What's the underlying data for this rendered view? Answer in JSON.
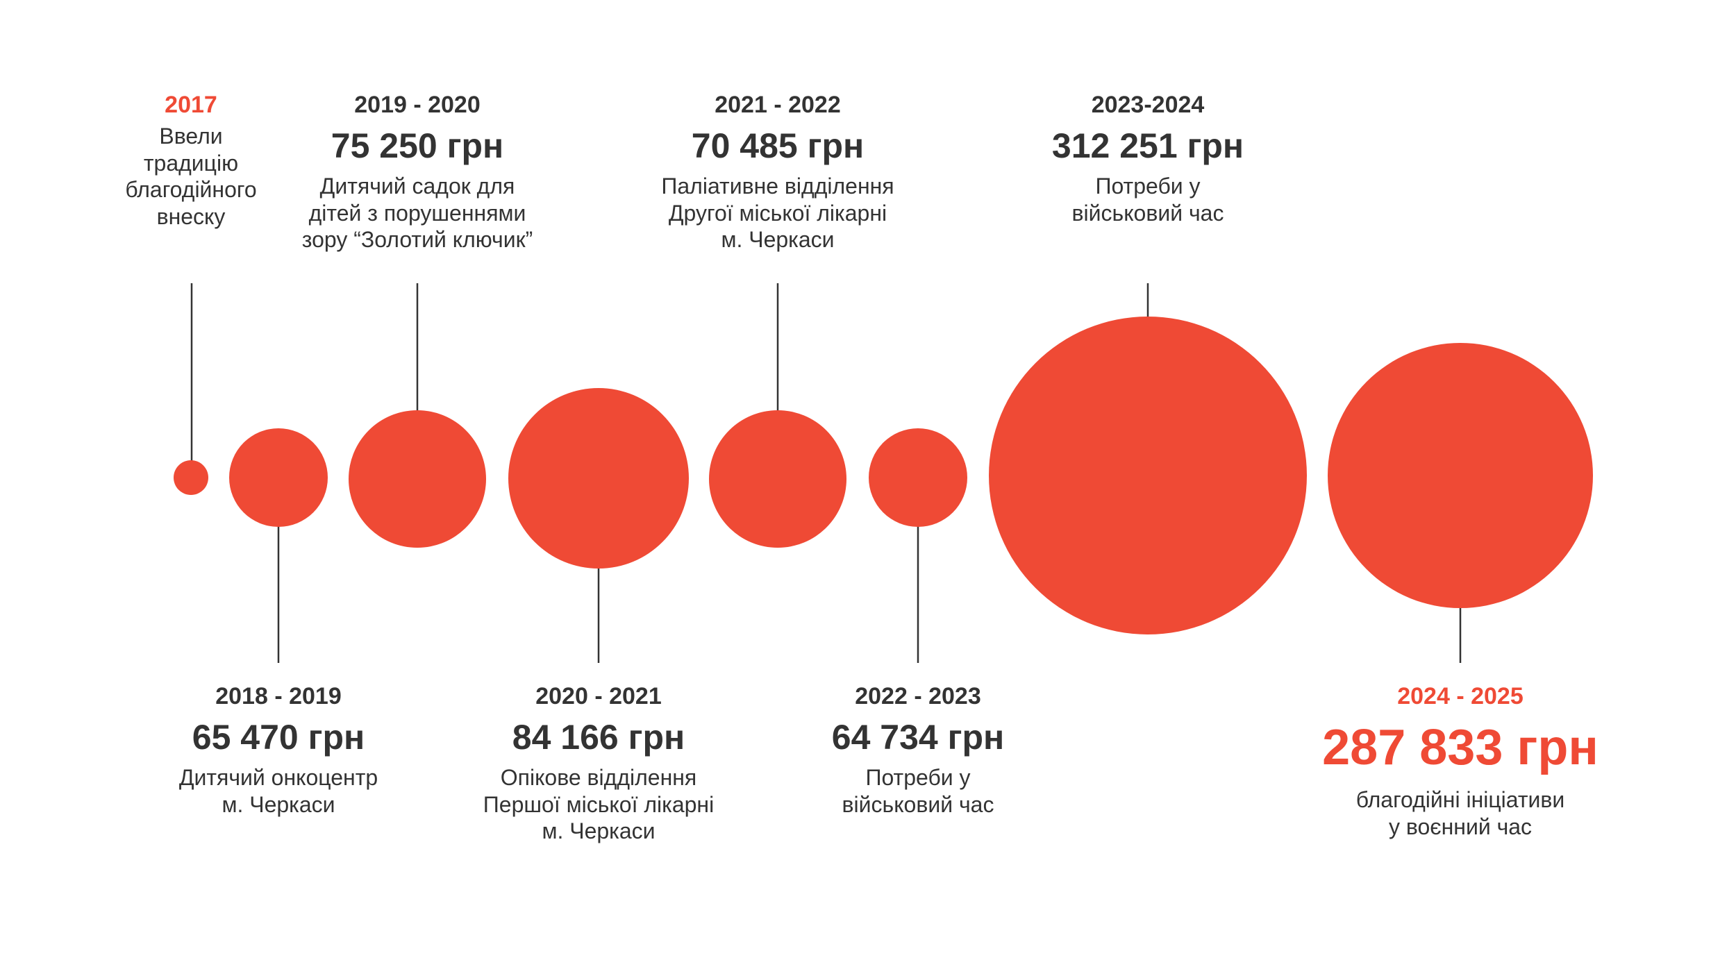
{
  "colors": {
    "circle": "#ef4a35",
    "connector": "#333333",
    "text": "#333333",
    "accent": "#ef4a35"
  },
  "periods": [
    {
      "year": "2017",
      "amount": "",
      "description": [
        "Ввели",
        "традицію",
        "благодійного",
        "внеску"
      ]
    },
    {
      "year": "2018 - 2019",
      "amount": "65 470 грн",
      "description": [
        "Дитячий онкоцентр",
        "м. Черкаси"
      ]
    },
    {
      "year": "2019 - 2020",
      "amount": "75 250 грн",
      "description": [
        "Дитячий садок для",
        "дітей з порушеннями",
        "зору “Золотий ключик”"
      ]
    },
    {
      "year": "2020 - 2021",
      "amount": "84 166 грн",
      "description": [
        "Опікове відділення",
        "Першої міської лікарні",
        "м. Черкаси"
      ]
    },
    {
      "year": "2021 - 2022",
      "amount": "70 485 грн",
      "description": [
        "Паліативне відділення",
        "Другої міської лікарні",
        "м. Черкаси"
      ]
    },
    {
      "year": "2022 - 2023",
      "amount": "64 734 грн",
      "description": [
        "Потреби у",
        "військовий час"
      ]
    },
    {
      "year": "2023-2024",
      "amount": "312 251 грн",
      "description": [
        "Потреби у",
        "військовий час"
      ]
    },
    {
      "year": "2024 - 2025",
      "amount": "287 833 грн",
      "description": [
        "благодійні ініціативи",
        "у воєнний час"
      ]
    }
  ]
}
